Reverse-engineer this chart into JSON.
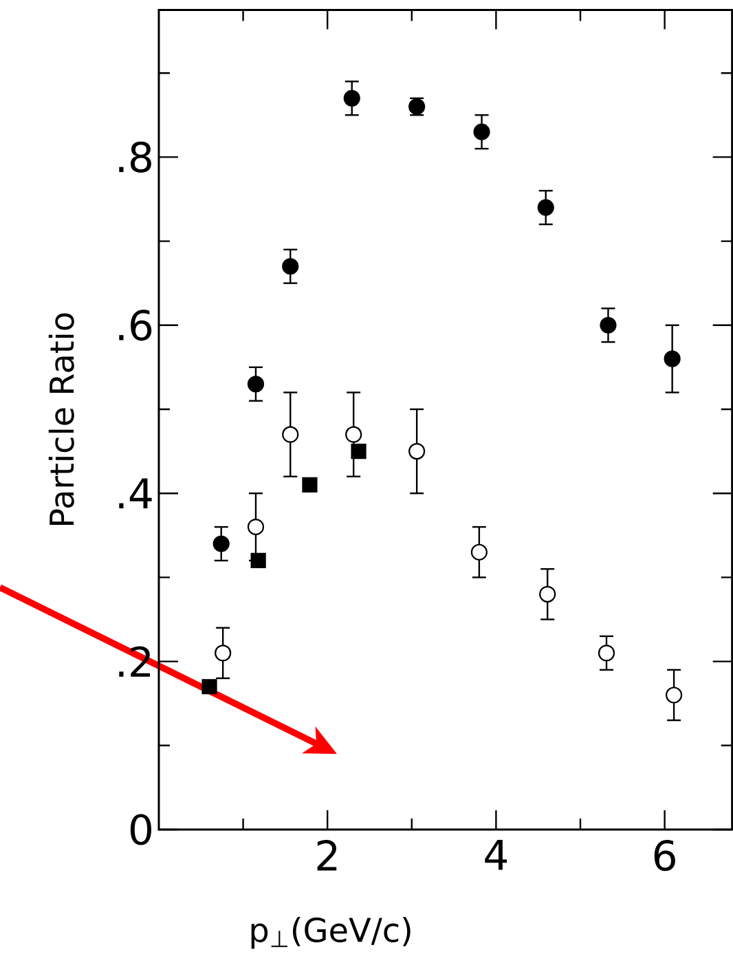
{
  "chart_data": {
    "type": "scatter",
    "xlabel": "p$_{⊥}$(GeV/c)",
    "ylabel": "Particle Ratio",
    "xlim": [
      0,
      6.8
    ],
    "ylim": [
      0,
      0.975
    ],
    "xticks": [
      {
        "value": 1,
        "label": null
      },
      2,
      {
        "value": 3,
        "label": null
      },
      4,
      {
        "value": 5,
        "label": null
      },
      6
    ],
    "yticks": [
      0,
      {
        "value": 0.1,
        "label": null
      },
      {
        "value": 0.2,
        "label": ".2"
      },
      {
        "value": 0.3,
        "label": null
      },
      {
        "value": 0.4,
        "label": ".4"
      },
      {
        "value": 0.5,
        "label": null
      },
      {
        "value": 0.6,
        "label": ".6"
      },
      {
        "value": 0.7,
        "label": null
      },
      {
        "value": 0.8,
        "label": ".8"
      },
      {
        "value": 0.9,
        "label": null
      }
    ],
    "grid": false,
    "series": [
      {
        "color": "#000000",
        "marker": "circle",
        "x": [
          0.74,
          1.15,
          1.56,
          2.29,
          3.06,
          3.83,
          4.59,
          5.33,
          6.09
        ],
        "values": [
          0.34,
          0.53,
          0.67,
          0.87,
          0.86,
          0.83,
          0.74,
          0.6,
          0.56
        ],
        "errors": [
          0.02,
          0.02,
          0.02,
          0.02,
          0.01,
          0.02,
          0.02,
          0.02,
          0.04
        ]
      },
      {
        "color": "#ffffff",
        "marker": "circle",
        "x": [
          0.76,
          1.15,
          1.56,
          2.31,
          3.06,
          3.8,
          4.61,
          5.31,
          6.11
        ],
        "values": [
          0.21,
          0.36,
          0.47,
          0.47,
          0.45,
          0.33,
          0.28,
          0.21,
          0.16
        ],
        "errors": [
          0.03,
          0.04,
          0.05,
          0.05,
          0.05,
          0.03,
          0.03,
          0.02,
          0.03
        ]
      },
      {
        "color": "#000000",
        "marker": "square",
        "x": [
          0.6,
          1.18,
          1.79,
          2.37
        ],
        "values": [
          0.17,
          0.32,
          0.41,
          0.45
        ]
      }
    ]
  }
}
